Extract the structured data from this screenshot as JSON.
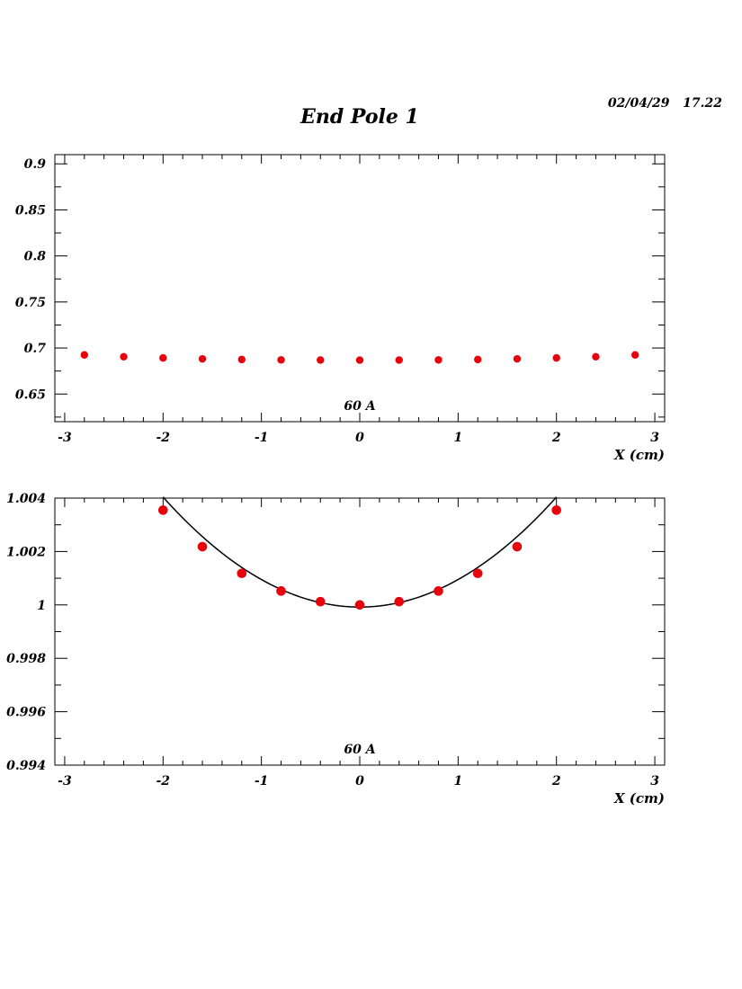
{
  "page": {
    "title": "End Pole 1",
    "timestamp": "02/04/29   17.22"
  },
  "chart_data": [
    {
      "type": "scatter",
      "xlabel": "X (cm)",
      "ylabel": "",
      "annotation": "60 A",
      "xlim": [
        -3.1,
        3.1
      ],
      "ylim": [
        0.62,
        0.91
      ],
      "xticks": [
        -3,
        -2,
        -1,
        0,
        1,
        2,
        3
      ],
      "xtick_labels": [
        "-3",
        "-2",
        "-1",
        "0",
        "1",
        "2",
        "3"
      ],
      "yticks": [
        0.65,
        0.7,
        0.75,
        0.8,
        0.85,
        0.9
      ],
      "ytick_labels": [
        "0.65",
        "0.7",
        "0.75",
        "0.8",
        "0.85",
        "0.9"
      ],
      "marker_color": "#e8000b",
      "series": [
        {
          "x": [
            -2.8,
            -2.4,
            -2.0,
            -1.6,
            -1.2,
            -0.8,
            -0.4,
            0.0,
            0.4,
            0.8,
            1.2,
            1.6,
            2.0,
            2.4,
            2.8
          ],
          "y": [
            0.6925,
            0.6905,
            0.6892,
            0.6882,
            0.6875,
            0.6871,
            0.6869,
            0.6868,
            0.6869,
            0.6871,
            0.6875,
            0.6882,
            0.6892,
            0.6905,
            0.6925
          ]
        }
      ]
    },
    {
      "type": "scatter",
      "xlabel": "X (cm)",
      "ylabel": "",
      "annotation": "60 A",
      "xlim": [
        -3.1,
        3.1
      ],
      "ylim": [
        0.994,
        1.004
      ],
      "xticks": [
        -3,
        -2,
        -1,
        0,
        1,
        2,
        3
      ],
      "xtick_labels": [
        "-3",
        "-2",
        "-1",
        "0",
        "1",
        "2",
        "3"
      ],
      "yticks": [
        0.994,
        0.996,
        0.998,
        1.0,
        1.002,
        1.004
      ],
      "ytick_labels": [
        "0.994",
        "0.996",
        "0.998",
        "1",
        "1.002",
        "1.004"
      ],
      "marker_color": "#e8000b",
      "series": [
        {
          "x": [
            -2.0,
            -1.6,
            -1.2,
            -0.8,
            -0.4,
            0.0,
            0.4,
            0.8,
            1.2,
            1.6,
            2.0
          ],
          "y": [
            1.00355,
            1.00218,
            1.00118,
            1.00052,
            1.00012,
            1.0,
            1.00012,
            1.00052,
            1.00118,
            1.00218,
            1.00355
          ]
        }
      ],
      "fit": {
        "type": "quadratic",
        "x_range": [
          -2.0,
          2.0
        ],
        "a": 0.00103,
        "c": 0.99992,
        "color": "#000000"
      }
    }
  ]
}
